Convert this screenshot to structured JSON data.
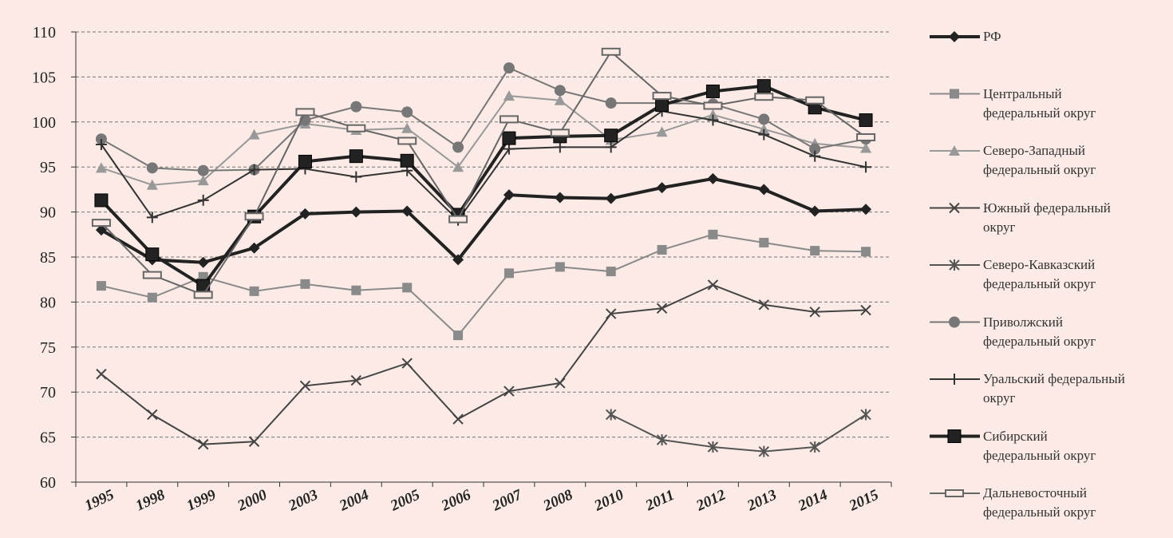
{
  "chart_data": {
    "type": "line",
    "categories": [
      "1995",
      "1998",
      "1999",
      "2000",
      "2003",
      "2004",
      "2005",
      "2006",
      "2007",
      "2008",
      "2010",
      "2011",
      "2012",
      "2013",
      "2014",
      "2015"
    ],
    "ylim": [
      60,
      110
    ],
    "yticks": [
      60,
      65,
      70,
      75,
      80,
      85,
      90,
      95,
      100,
      105,
      110
    ],
    "grid": true,
    "legend": "right",
    "series": [
      {
        "name": "РФ",
        "color": "#222222",
        "marker": "diamond",
        "values": [
          88,
          84.7,
          84.4,
          86,
          89.8,
          90,
          90.1,
          84.7,
          91.9,
          91.6,
          91.5,
          92.7,
          93.7,
          92.5,
          90.1,
          90.3
        ]
      },
      {
        "name": "Центральный федеральный округ",
        "color": "#8a8a8a",
        "marker": "square",
        "values": [
          81.8,
          80.5,
          82.8,
          81.2,
          82,
          81.3,
          81.6,
          76.3,
          83.2,
          83.9,
          83.4,
          85.8,
          87.5,
          86.6,
          85.7,
          85.6
        ]
      },
      {
        "name": "Северо-Западный федеральный округ",
        "color": "#999999",
        "marker": "triangle",
        "values": [
          94.9,
          93,
          93.5,
          98.6,
          99.8,
          99.1,
          99.3,
          95,
          102.9,
          102.4,
          98,
          98.9,
          100.8,
          99.2,
          97.6,
          97.1
        ]
      },
      {
        "name": "Южный федеральный округ",
        "color": "#444444",
        "marker": "x",
        "values": [
          72,
          67.5,
          64.2,
          64.5,
          70.7,
          71.3,
          73.2,
          67,
          70.1,
          71,
          78.7,
          79.3,
          81.9,
          79.7,
          78.9,
          79.1
        ]
      },
      {
        "name": "Северо-Кавказский федеральный округ",
        "color": "#555555",
        "marker": "star",
        "values": [
          null,
          null,
          null,
          null,
          null,
          null,
          null,
          null,
          null,
          null,
          67.5,
          64.7,
          63.9,
          63.4,
          63.9,
          67.5
        ]
      },
      {
        "name": "Приволжский федеральный округ",
        "color": "#777777",
        "marker": "circle",
        "values": [
          98.1,
          94.9,
          94.6,
          94.7,
          100.2,
          101.7,
          101.1,
          97.2,
          106,
          103.5,
          102.1,
          102.1,
          102,
          100.3,
          97,
          98.1
        ]
      },
      {
        "name": "Уральский федеральный округ",
        "color": "#333333",
        "marker": "plus",
        "values": [
          97.5,
          89.4,
          91.3,
          94.7,
          94.8,
          93.9,
          94.6,
          89.1,
          97,
          97.2,
          97.2,
          101.2,
          100.2,
          98.6,
          96.2,
          95
        ]
      },
      {
        "name": "Сибирский федеральный округ",
        "color": "#222222",
        "marker": "bigsquare",
        "values": [
          91.3,
          85.3,
          81.8,
          89.5,
          95.6,
          96.2,
          95.7,
          89.7,
          98.2,
          98.4,
          98.5,
          101.9,
          103.4,
          104,
          101.6,
          100.2
        ]
      },
      {
        "name": "Дальневосточный федеральный округ",
        "color": "#666666",
        "marker": "dash",
        "values": [
          88.8,
          83,
          80.8,
          89.5,
          101.1,
          99.3,
          97.9,
          89.2,
          100.3,
          98.8,
          107.8,
          102.9,
          101.8,
          102.8,
          102.4,
          98.3
        ]
      }
    ]
  }
}
